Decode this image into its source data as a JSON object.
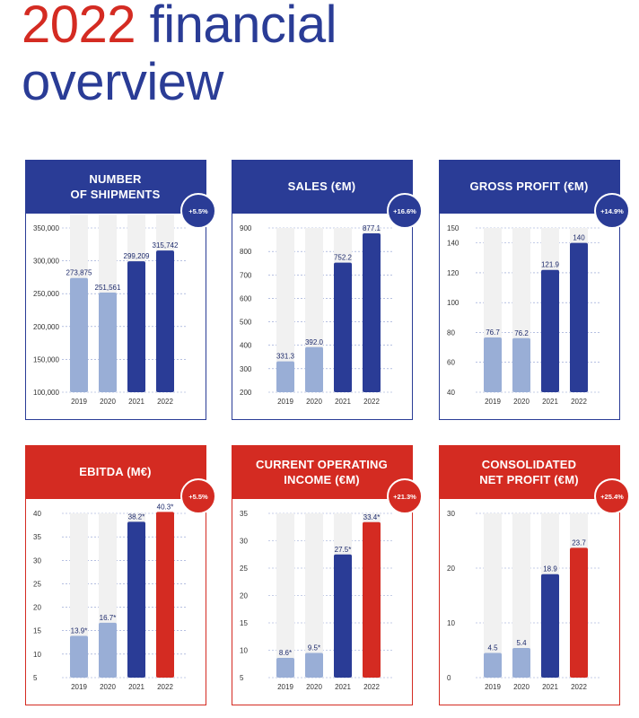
{
  "page": {
    "title_year": "2022",
    "title_rest": "financial",
    "title_line2": "overview"
  },
  "colors": {
    "blue": "#2a3c96",
    "light_blue": "#99aed6",
    "red": "#d42b22",
    "track": "#f1f1f1",
    "grid": "#8a9bd0"
  },
  "chart_data": [
    {
      "type": "bar",
      "title": "NUMBER\nOF SHIPMENTS",
      "badge": "+5.5%",
      "categories": [
        "2019",
        "2020",
        "2021",
        "2022"
      ],
      "values": [
        273875,
        251561,
        299209,
        315742
      ],
      "value_labels": [
        "273,875",
        "251,561",
        "299,209",
        "315,742"
      ],
      "ylim": [
        100000,
        350000
      ],
      "yticks": [
        100000,
        150000,
        200000,
        250000,
        300000,
        350000
      ],
      "ytick_labels": [
        "100,000",
        "150,000",
        "200,000",
        "250,000",
        "300,000",
        "350,000"
      ],
      "track_max": 370000,
      "bar_colors": [
        "light_blue",
        "light_blue",
        "blue",
        "blue"
      ],
      "theme": "blue",
      "grid": true
    },
    {
      "type": "bar",
      "title": "SALES (€M)",
      "badge": "+16.6%",
      "categories": [
        "2019",
        "2020",
        "2021",
        "2022"
      ],
      "values": [
        331.3,
        392.0,
        752.2,
        877.1
      ],
      "value_labels": [
        "331.3",
        "392.0",
        "752.2",
        "877.1"
      ],
      "ylim": [
        200,
        900
      ],
      "yticks": [
        200,
        300,
        400,
        500,
        600,
        700,
        800,
        900
      ],
      "ytick_labels": [
        "200",
        "300",
        "400",
        "500",
        "600",
        "700",
        "800",
        "900"
      ],
      "track_max": 900,
      "bar_colors": [
        "light_blue",
        "light_blue",
        "blue",
        "blue"
      ],
      "theme": "blue",
      "grid": true
    },
    {
      "type": "bar",
      "title": "GROSS PROFIT (€M)",
      "badge": "+14.9%",
      "categories": [
        "2019",
        "2020",
        "2021",
        "2022"
      ],
      "values": [
        76.7,
        76.2,
        121.9,
        140
      ],
      "value_labels": [
        "76.7",
        "76.2",
        "121.9",
        "140"
      ],
      "ylim": [
        40,
        150
      ],
      "yticks": [
        40,
        60,
        80,
        100,
        120,
        140,
        150
      ],
      "ytick_labels": [
        "40",
        "60",
        "80",
        "100",
        "120",
        "140",
        "150"
      ],
      "track_max": 150,
      "bar_colors": [
        "light_blue",
        "light_blue",
        "blue",
        "blue"
      ],
      "theme": "blue",
      "grid": true
    },
    {
      "type": "bar",
      "title": "EBITDA (M€)",
      "badge": "+5.5%",
      "categories": [
        "2019",
        "2020",
        "2021",
        "2022"
      ],
      "values": [
        13.9,
        16.7,
        38.2,
        40.3
      ],
      "value_labels": [
        "13.9*",
        "16.7*",
        "38.2*",
        "40.3*"
      ],
      "ylim": [
        5,
        40
      ],
      "yticks": [
        5,
        10,
        15,
        20,
        25,
        30,
        35,
        40
      ],
      "ytick_labels": [
        "5",
        "10",
        "15",
        "20",
        "25",
        "30",
        "35",
        "40"
      ],
      "track_max": 40,
      "bar_colors": [
        "light_blue",
        "light_blue",
        "blue",
        "red"
      ],
      "theme": "red",
      "grid": true
    },
    {
      "type": "bar",
      "title": "CURRENT OPERATING\nINCOME (€M)",
      "badge": "+21.3%",
      "categories": [
        "2019",
        "2020",
        "2021",
        "2022"
      ],
      "values": [
        8.6,
        9.5,
        27.5,
        33.4
      ],
      "value_labels": [
        "8.6*",
        "9.5*",
        "27.5*",
        "33.4*"
      ],
      "ylim": [
        5,
        35
      ],
      "yticks": [
        5,
        10,
        15,
        20,
        25,
        30,
        35
      ],
      "ytick_labels": [
        "5",
        "10",
        "15",
        "20",
        "25",
        "30",
        "35"
      ],
      "track_max": 35,
      "bar_colors": [
        "light_blue",
        "light_blue",
        "blue",
        "red"
      ],
      "theme": "red",
      "grid": true
    },
    {
      "type": "bar",
      "title": "CONSOLIDATED\nNET PROFIT (€M)",
      "badge": "+25.4%",
      "categories": [
        "2019",
        "2020",
        "2021",
        "2022"
      ],
      "values": [
        4.5,
        5.4,
        18.9,
        23.7
      ],
      "value_labels": [
        "4.5",
        "5.4",
        "18.9",
        "23.7"
      ],
      "ylim": [
        0,
        30
      ],
      "yticks": [
        0,
        10,
        20,
        30
      ],
      "ytick_labels": [
        "0",
        "10",
        "20",
        "30"
      ],
      "track_max": 30,
      "bar_colors": [
        "light_blue",
        "light_blue",
        "blue",
        "red"
      ],
      "theme": "red",
      "grid": true
    }
  ]
}
